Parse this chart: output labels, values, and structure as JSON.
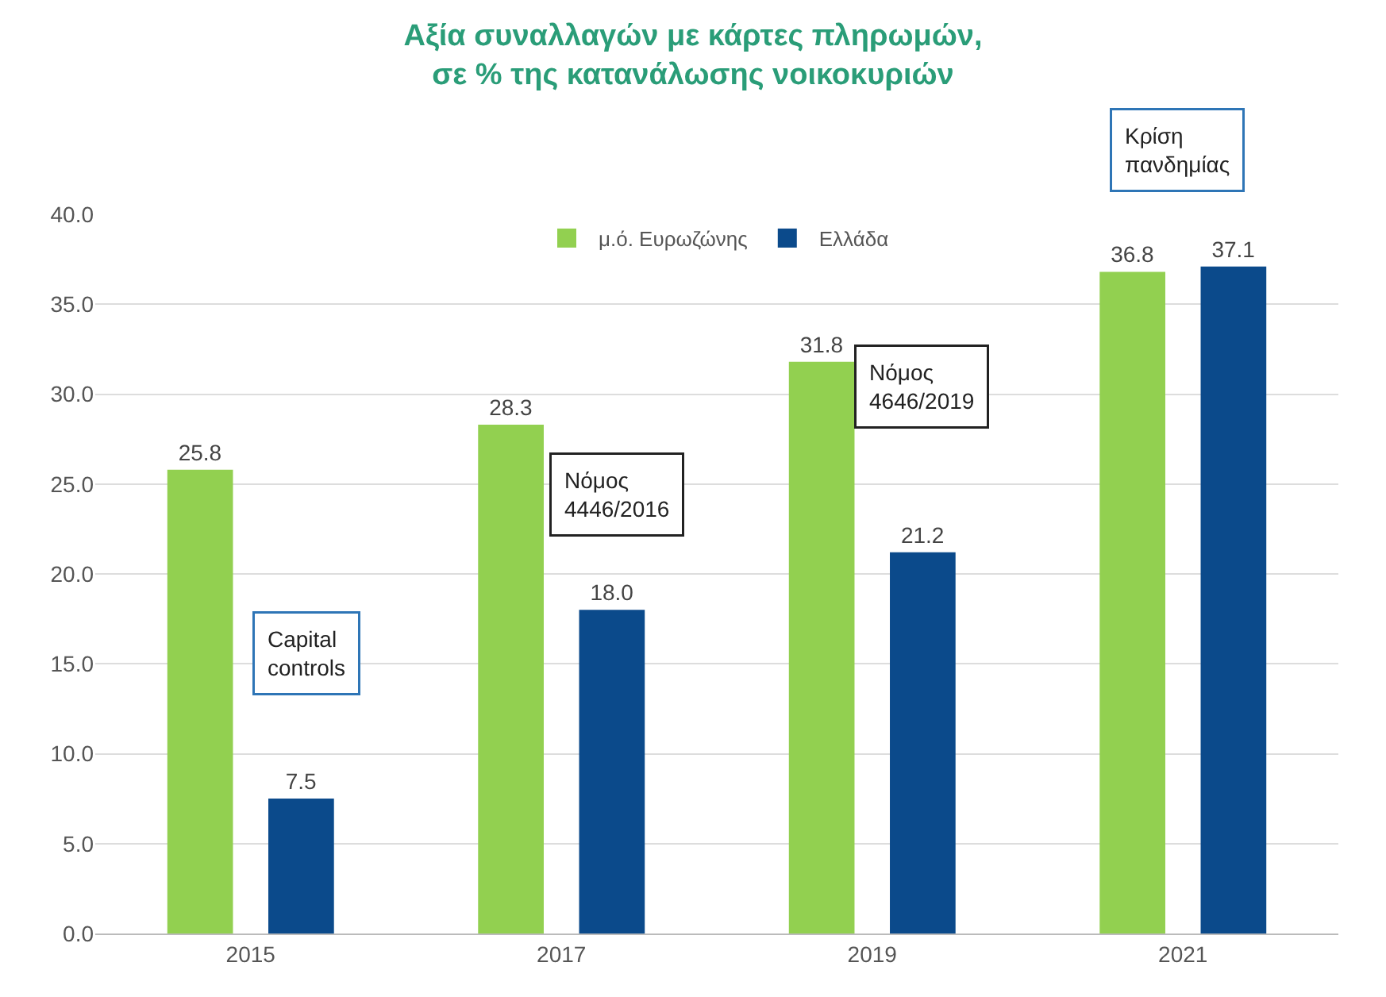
{
  "chart_data": {
    "type": "bar",
    "title": "Αξία συναλλαγών με κάρτες πληρωμών,\nσε % της κατανάλωσης νοικοκυριών",
    "categories": [
      "2015",
      "2017",
      "2019",
      "2021"
    ],
    "series": [
      {
        "name": "μ.ό. Ευρωζώνης",
        "color": "#92d050",
        "values": [
          25.8,
          28.3,
          31.8,
          36.8
        ],
        "value_labels": [
          "25.8",
          "28.3",
          "31.8",
          "36.8"
        ]
      },
      {
        "name": "Ελλάδα",
        "color": "#0b4a8b",
        "values": [
          7.5,
          18.0,
          21.2,
          37.1
        ],
        "value_labels": [
          "7.5",
          "18.0",
          "21.2",
          "37.1"
        ]
      }
    ],
    "ylim": [
      0,
      40
    ],
    "yticks": [
      {
        "value": 0,
        "label": "0.0"
      },
      {
        "value": 5,
        "label": "5.0"
      },
      {
        "value": 10,
        "label": "10.0"
      },
      {
        "value": 15,
        "label": "15.0"
      },
      {
        "value": 20,
        "label": "20.0"
      },
      {
        "value": 25,
        "label": "25.0"
      },
      {
        "value": 30,
        "label": "30.0"
      },
      {
        "value": 35,
        "label": "35.0"
      },
      {
        "value": 40,
        "label": "40.0"
      }
    ],
    "grid": "y",
    "legend": "top",
    "annotations": [
      "Capital controls",
      "Νόμος 4446/2016",
      "Νόμος 4646/2019",
      "Κρίση πανδημίας"
    ]
  }
}
